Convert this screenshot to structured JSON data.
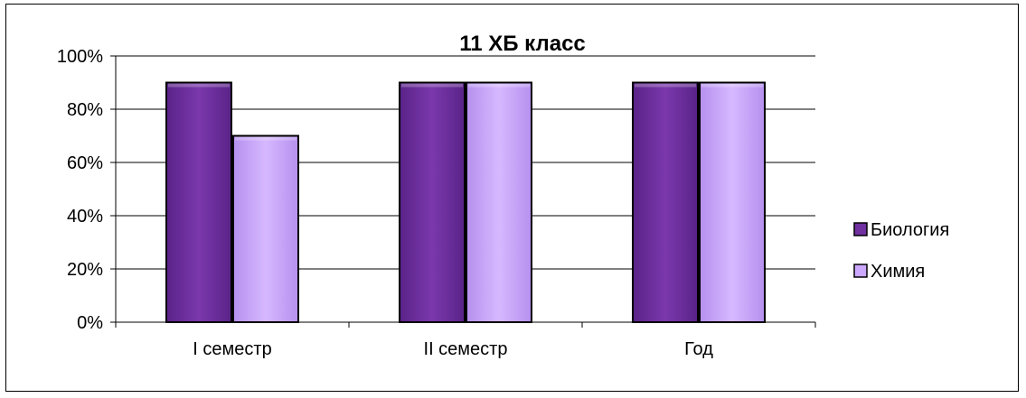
{
  "chart_data": {
    "type": "bar",
    "title": "11 ХБ класс",
    "categories": [
      "I семестр",
      "II семестр",
      "Год"
    ],
    "series": [
      {
        "name": "Биология",
        "values": [
          90,
          90,
          90
        ],
        "color": "#7030A0"
      },
      {
        "name": "Химия",
        "values": [
          70,
          90,
          90
        ],
        "color": "#CCA8FF"
      }
    ],
    "y_ticks": [
      "0%",
      "20%",
      "40%",
      "60%",
      "80%",
      "100%"
    ],
    "ylim": [
      0,
      100
    ],
    "grid": true,
    "legend_position": "right",
    "xlabel": "",
    "ylabel": ""
  }
}
